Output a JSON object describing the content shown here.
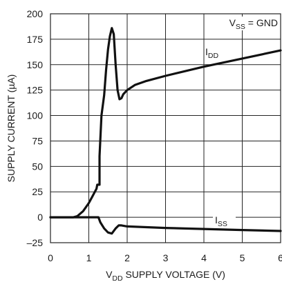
{
  "chart_data": {
    "type": "line",
    "xlabel": {
      "main": "V",
      "sub": "DD",
      "rest": " SUPPLY VOLTAGE (V)"
    },
    "ylabel": "SUPPLY CURRENT (µA)",
    "xlim": [
      0,
      6
    ],
    "ylim": [
      -25,
      200
    ],
    "x_ticks": [
      0,
      1,
      2,
      3,
      4,
      5,
      6
    ],
    "x_tick_labels": [
      "0",
      "1",
      "2",
      "3",
      "4",
      "5",
      "6"
    ],
    "y_ticks": [
      -25,
      0,
      25,
      50,
      75,
      100,
      125,
      150,
      175,
      200
    ],
    "y_tick_labels": [
      "–25",
      "0",
      "25",
      "50",
      "75",
      "100",
      "125",
      "150",
      "175",
      "200"
    ],
    "grid": true,
    "annotation": {
      "main": "V",
      "sub": "SS",
      "rest": " = GND"
    },
    "series": [
      {
        "name": "I_DD",
        "label_main": "I",
        "label_sub": "DD",
        "points": [
          [
            0,
            0
          ],
          [
            0.6,
            0
          ],
          [
            0.7,
            1
          ],
          [
            0.85,
            6
          ],
          [
            1.0,
            14
          ],
          [
            1.1,
            21
          ],
          [
            1.2,
            28
          ],
          [
            1.22,
            32
          ],
          [
            1.28,
            32
          ],
          [
            1.28,
            60
          ],
          [
            1.33,
            100
          ],
          [
            1.4,
            120
          ],
          [
            1.45,
            145
          ],
          [
            1.5,
            165
          ],
          [
            1.55,
            178
          ],
          [
            1.6,
            186
          ],
          [
            1.65,
            180
          ],
          [
            1.7,
            150
          ],
          [
            1.75,
            125
          ],
          [
            1.8,
            116
          ],
          [
            1.85,
            117
          ],
          [
            1.9,
            121
          ],
          [
            2.0,
            125
          ],
          [
            2.2,
            130
          ],
          [
            2.5,
            134
          ],
          [
            3.0,
            139
          ],
          [
            4.0,
            148
          ],
          [
            5.0,
            156
          ],
          [
            6.0,
            164
          ]
        ]
      },
      {
        "name": "I_SS",
        "label_main": "I",
        "label_sub": "SS",
        "points": [
          [
            0,
            0
          ],
          [
            1.25,
            0
          ],
          [
            1.3,
            -5
          ],
          [
            1.4,
            -11
          ],
          [
            1.5,
            -15
          ],
          [
            1.6,
            -16
          ],
          [
            1.7,
            -11
          ],
          [
            1.78,
            -8
          ],
          [
            1.85,
            -8
          ],
          [
            2.0,
            -9
          ],
          [
            3.0,
            -10.5
          ],
          [
            4.0,
            -11.5
          ],
          [
            5.0,
            -12.5
          ],
          [
            6.0,
            -13.5
          ]
        ]
      }
    ]
  }
}
